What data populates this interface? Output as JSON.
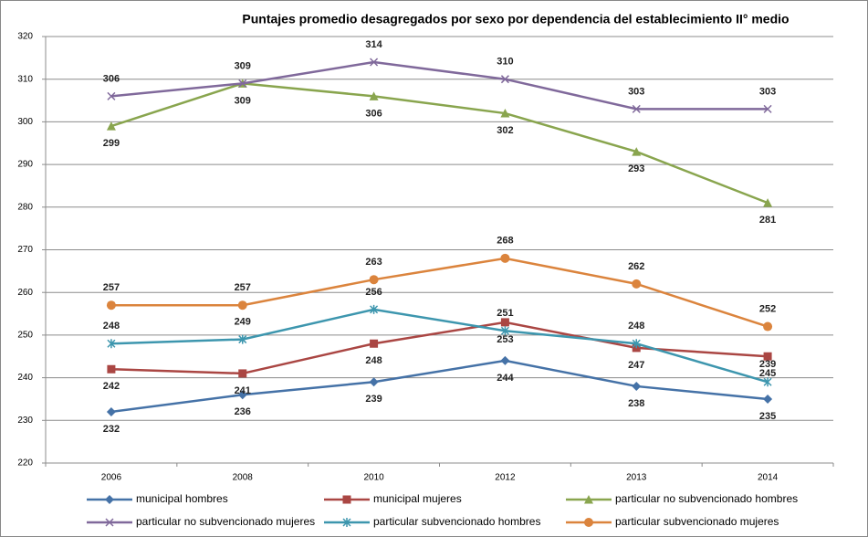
{
  "chart_data": {
    "type": "line",
    "title": "Puntajes promedio desagregados por sexo por dependencia del establecimiento II° medio",
    "categories": [
      "2006",
      "2008",
      "2010",
      "2012",
      "2013",
      "2014"
    ],
    "ylim": [
      220,
      320
    ],
    "yticks": [
      220,
      230,
      240,
      250,
      260,
      270,
      280,
      290,
      300,
      310,
      320
    ],
    "grid": true,
    "legend": "bottom",
    "series": [
      {
        "name": "municipal hombres",
        "color": "#4572a7",
        "values": [
          232,
          236,
          239,
          244,
          238,
          235
        ]
      },
      {
        "name": "municipal mujeres",
        "color": "#aa4643",
        "values": [
          242,
          241,
          248,
          253,
          247,
          245
        ]
      },
      {
        "name": "particular no subvencionado hombres",
        "color": "#89a54e",
        "values": [
          299,
          309,
          306,
          302,
          293,
          281
        ]
      },
      {
        "name": "particular no subvencionado mujeres",
        "color": "#80699b",
        "values": [
          306,
          309,
          314,
          310,
          303,
          303
        ]
      },
      {
        "name": "particular subvencionado hombres",
        "color": "#3d96ae",
        "values": [
          248,
          249,
          256,
          251,
          248,
          239
        ]
      },
      {
        "name": "particular subvencionado mujeres",
        "color": "#db843d",
        "values": [
          257,
          257,
          263,
          268,
          262,
          252
        ]
      }
    ]
  }
}
